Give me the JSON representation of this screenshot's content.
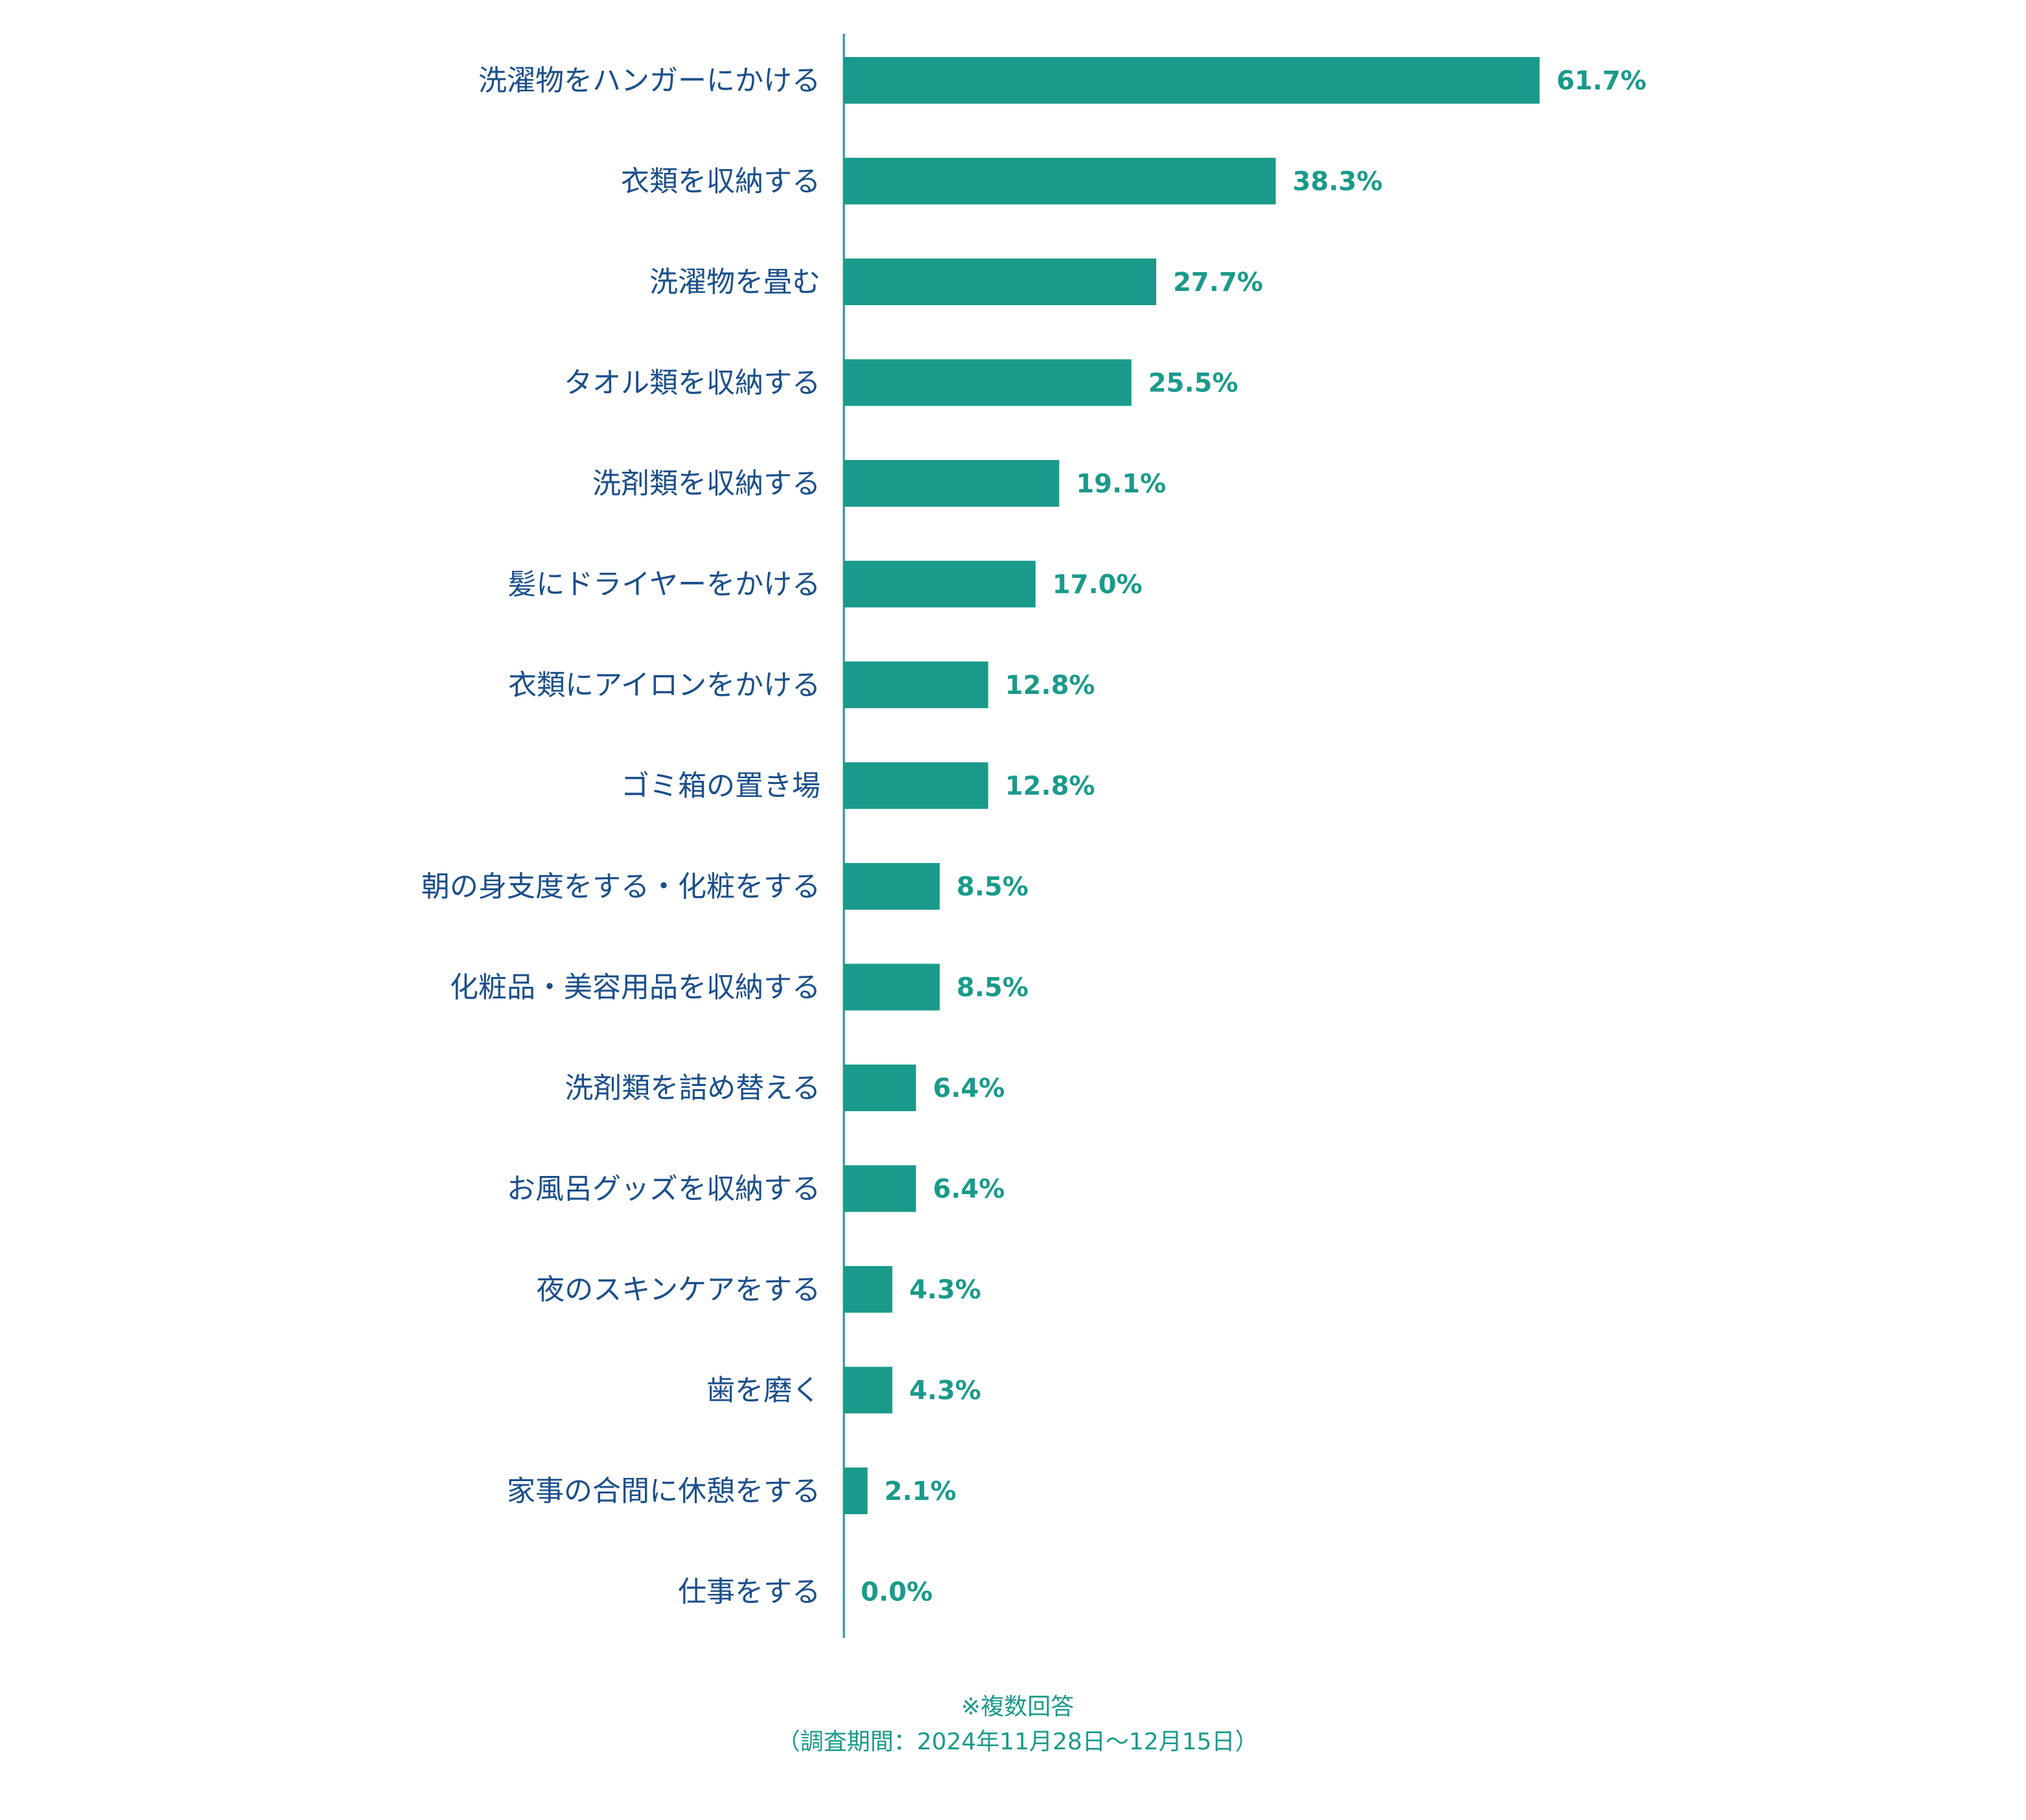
{
  "chart_data": {
    "type": "bar",
    "orientation": "horizontal",
    "categories": [
      "洗濯物をハンガーにかける",
      "衣類を収納する",
      "洗濯物を畳む",
      "タオル類を収納する",
      "洗剤類を収納する",
      "髪にドライヤーをかける",
      "衣類にアイロンをかける",
      "ゴミ箱の置き場",
      "朝の身支度をする・化粧をする",
      "化粧品・美容用品を収納する",
      "洗剤類を詰め替える",
      "お風呂グッズを収納する",
      "夜のスキンケアをする",
      "歯を磨く",
      "家事の合間に休憩をする",
      "仕事をする"
    ],
    "values": [
      61.7,
      38.3,
      27.7,
      25.5,
      19.1,
      17.0,
      12.8,
      12.8,
      8.5,
      8.5,
      6.4,
      6.4,
      4.3,
      4.3,
      2.1,
      0.0
    ],
    "value_labels": [
      "61.7%",
      "38.3%",
      "27.7%",
      "25.5%",
      "19.1%",
      "17.0%",
      "12.8%",
      "12.8%",
      "8.5%",
      "8.5%",
      "6.4%",
      "6.4%",
      "4.3%",
      "4.3%",
      "2.1%",
      "0.0%"
    ],
    "xlim": [
      0,
      100
    ],
    "grid": false,
    "legend": "none",
    "colors": {
      "bar": "#1a9a8a",
      "category_text": "#1b4f8a",
      "value_text": "#1a9a8a",
      "axis": "#1a9a8a"
    }
  },
  "notes": {
    "multiple_answers": "※複数回答",
    "survey_period": "（調査期間：2024年11月28日～12月15日）"
  }
}
